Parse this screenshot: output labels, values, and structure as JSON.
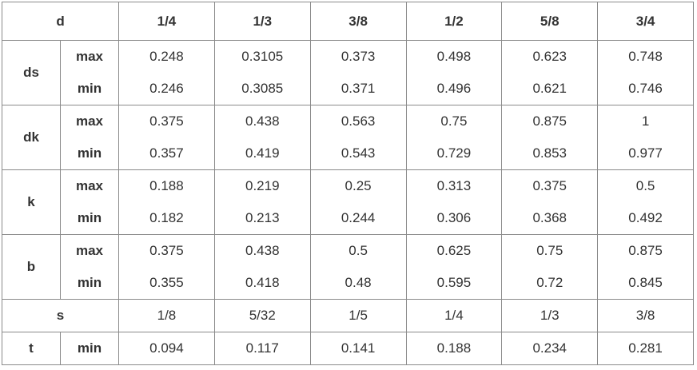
{
  "table": {
    "header": {
      "label": "d",
      "sizes": [
        "1/4",
        "1/3",
        "3/8",
        "1/2",
        "5/8",
        "3/4"
      ]
    },
    "groups": [
      {
        "label": "ds",
        "rows": [
          {
            "label": "max",
            "values": [
              "0.248",
              "0.3105",
              "0.373",
              "0.498",
              "0.623",
              "0.748"
            ]
          },
          {
            "label": "min",
            "values": [
              "0.246",
              "0.3085",
              "0.371",
              "0.496",
              "0.621",
              "0.746"
            ]
          }
        ]
      },
      {
        "label": "dk",
        "rows": [
          {
            "label": "max",
            "values": [
              "0.375",
              "0.438",
              "0.563",
              "0.75",
              "0.875",
              "1"
            ]
          },
          {
            "label": "min",
            "values": [
              "0.357",
              "0.419",
              "0.543",
              "0.729",
              "0.853",
              "0.977"
            ]
          }
        ]
      },
      {
        "label": "k",
        "rows": [
          {
            "label": "max",
            "values": [
              "0.188",
              "0.219",
              "0.25",
              "0.313",
              "0.375",
              "0.5"
            ]
          },
          {
            "label": "min",
            "values": [
              "0.182",
              "0.213",
              "0.244",
              "0.306",
              "0.368",
              "0.492"
            ]
          }
        ]
      },
      {
        "label": "b",
        "rows": [
          {
            "label": "max",
            "values": [
              "0.375",
              "0.438",
              "0.5",
              "0.625",
              "0.75",
              "0.875"
            ]
          },
          {
            "label": "min",
            "values": [
              "0.355",
              "0.418",
              "0.48",
              "0.595",
              "0.72",
              "0.845"
            ]
          }
        ]
      },
      {
        "label": "s",
        "values": [
          "1/8",
          "5/32",
          "1/5",
          "1/4",
          "1/3",
          "3/8"
        ]
      },
      {
        "label": "t",
        "rows": [
          {
            "label": "min",
            "values": [
              "0.094",
              "0.117",
              "0.141",
              "0.188",
              "0.234",
              "0.281"
            ]
          }
        ]
      }
    ]
  }
}
